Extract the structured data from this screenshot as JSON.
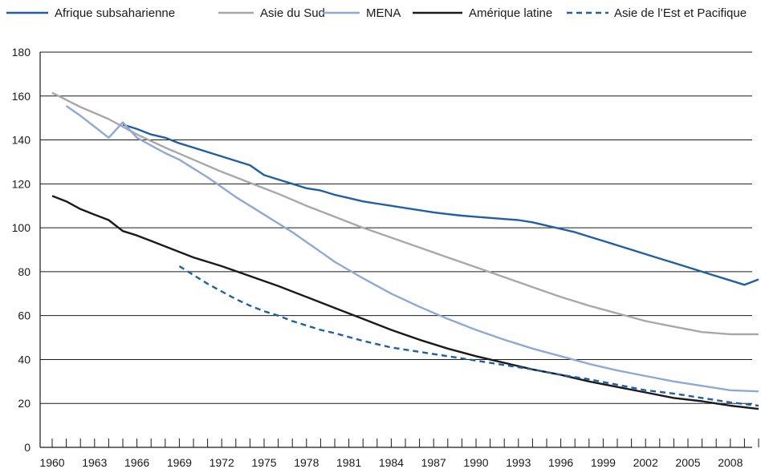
{
  "chart_data": {
    "type": "line",
    "title": "",
    "xlabel": "",
    "ylabel": "",
    "ylim": [
      0,
      180
    ],
    "xlim": [
      1960,
      2010
    ],
    "y_ticks": [
      0,
      20,
      40,
      60,
      80,
      100,
      120,
      140,
      160,
      180
    ],
    "x_tick_labels": [
      "1960",
      "1963",
      "1966",
      "1969",
      "1972",
      "1975",
      "1978",
      "1981",
      "1984",
      "1987",
      "1990",
      "1993",
      "1996",
      "1999",
      "2002",
      "2005",
      "2008"
    ],
    "grid": "horizontal",
    "legend_position": "top",
    "series": [
      {
        "name": "Afrique subsaharienne",
        "color": "#1f5fa6",
        "dash": "solid",
        "x": [
          1965,
          1966,
          1967,
          1968,
          1969,
          1970,
          1971,
          1972,
          1973,
          1974,
          1975,
          1976,
          1977,
          1978,
          1979,
          1980,
          1981,
          1982,
          1983,
          1984,
          1985,
          1986,
          1987,
          1988,
          1989,
          1990,
          1991,
          1992,
          1993,
          1994,
          1995,
          1996,
          1997,
          1998,
          1999,
          2000,
          2001,
          2002,
          2003,
          2004,
          2005,
          2006,
          2007,
          2008,
          2009,
          2010
        ],
        "y": [
          147,
          145,
          142.5,
          141,
          138.5,
          136.5,
          134.5,
          132.5,
          130.5,
          128.5,
          124,
          122,
          120,
          118,
          117,
          115,
          113.5,
          112,
          111,
          110,
          109,
          108,
          107,
          106.2,
          105.5,
          105,
          104.5,
          104,
          103.5,
          102.5,
          101,
          99.5,
          98,
          96,
          94,
          92,
          90,
          88,
          86,
          84,
          82,
          80,
          78,
          76,
          74,
          76.5
        ]
      },
      {
        "name": "Asie du Sud",
        "color": "#a8a8a8",
        "dash": "solid",
        "x": [
          1960,
          1962,
          1964,
          1966,
          1968,
          1970,
          1972,
          1974,
          1976,
          1978,
          1980,
          1982,
          1984,
          1986,
          1988,
          1990,
          1992,
          1994,
          1996,
          1998,
          2000,
          2002,
          2004,
          2006,
          2008,
          2010
        ],
        "y": [
          161.5,
          155,
          149.5,
          142.5,
          136.5,
          131,
          125.5,
          120.5,
          115.5,
          110,
          105,
          100,
          95.5,
          91,
          86.5,
          82,
          77.5,
          73,
          68.5,
          64.5,
          61,
          57.5,
          55,
          52.5,
          51.5,
          51.5
        ]
      },
      {
        "name": "MENA",
        "color": "#8fa8d6",
        "dash": "solid",
        "x": [
          1961,
          1962,
          1963,
          1964,
          1965,
          1966,
          1967,
          1968,
          1969,
          1970,
          1971,
          1972,
          1973,
          1974,
          1975,
          1976,
          1977,
          1978,
          1979,
          1980,
          1982,
          1984,
          1986,
          1988,
          1990,
          1992,
          1994,
          1996,
          1998,
          2000,
          2002,
          2004,
          2006,
          2008,
          2010
        ],
        "y": [
          155.5,
          151,
          146,
          141,
          148,
          141,
          137.5,
          134,
          131,
          127,
          123,
          118.5,
          114,
          110,
          106,
          102,
          98,
          93.5,
          89,
          84.5,
          77,
          70,
          64,
          58.5,
          53.5,
          49,
          45,
          41.5,
          38,
          35,
          32.5,
          30,
          28,
          26,
          25.5
        ]
      },
      {
        "name": "Amérique latine",
        "color": "#1a1a1a",
        "dash": "solid",
        "x": [
          1960,
          1961,
          1962,
          1963,
          1964,
          1965,
          1966,
          1967,
          1968,
          1969,
          1970,
          1972,
          1974,
          1976,
          1978,
          1980,
          1982,
          1984,
          1986,
          1988,
          1990,
          1992,
          1994,
          1996,
          1998,
          2000,
          2002,
          2004,
          2006,
          2008,
          2010
        ],
        "y": [
          114.5,
          112,
          108.5,
          106,
          103.5,
          98.5,
          96.5,
          94,
          91.5,
          89,
          86.5,
          82.5,
          78,
          73.5,
          68.5,
          63.5,
          58.5,
          53.5,
          49,
          45,
          41.5,
          38.5,
          35.5,
          33,
          30,
          27.5,
          25,
          22.5,
          21,
          19,
          17.5
        ]
      },
      {
        "name": "Asie de l’Est et Pacifique",
        "color": "#1f5fa6",
        "dash": "dashed",
        "x": [
          1969,
          1970,
          1971,
          1972,
          1973,
          1974,
          1975,
          1976,
          1977,
          1978,
          1979,
          1980,
          1982,
          1984,
          1986,
          1988,
          1990,
          1992,
          1994,
          1996,
          1998,
          2000,
          2002,
          2004,
          2006,
          2008,
          2010
        ],
        "y": [
          82.5,
          78.5,
          74.5,
          71,
          67.5,
          64.5,
          62,
          60,
          57.5,
          55.5,
          53.5,
          52,
          48.5,
          45.5,
          43.5,
          41.5,
          39.5,
          37.5,
          35.5,
          33,
          31,
          28.5,
          26,
          24.5,
          22.5,
          20.5,
          19
        ]
      }
    ]
  }
}
